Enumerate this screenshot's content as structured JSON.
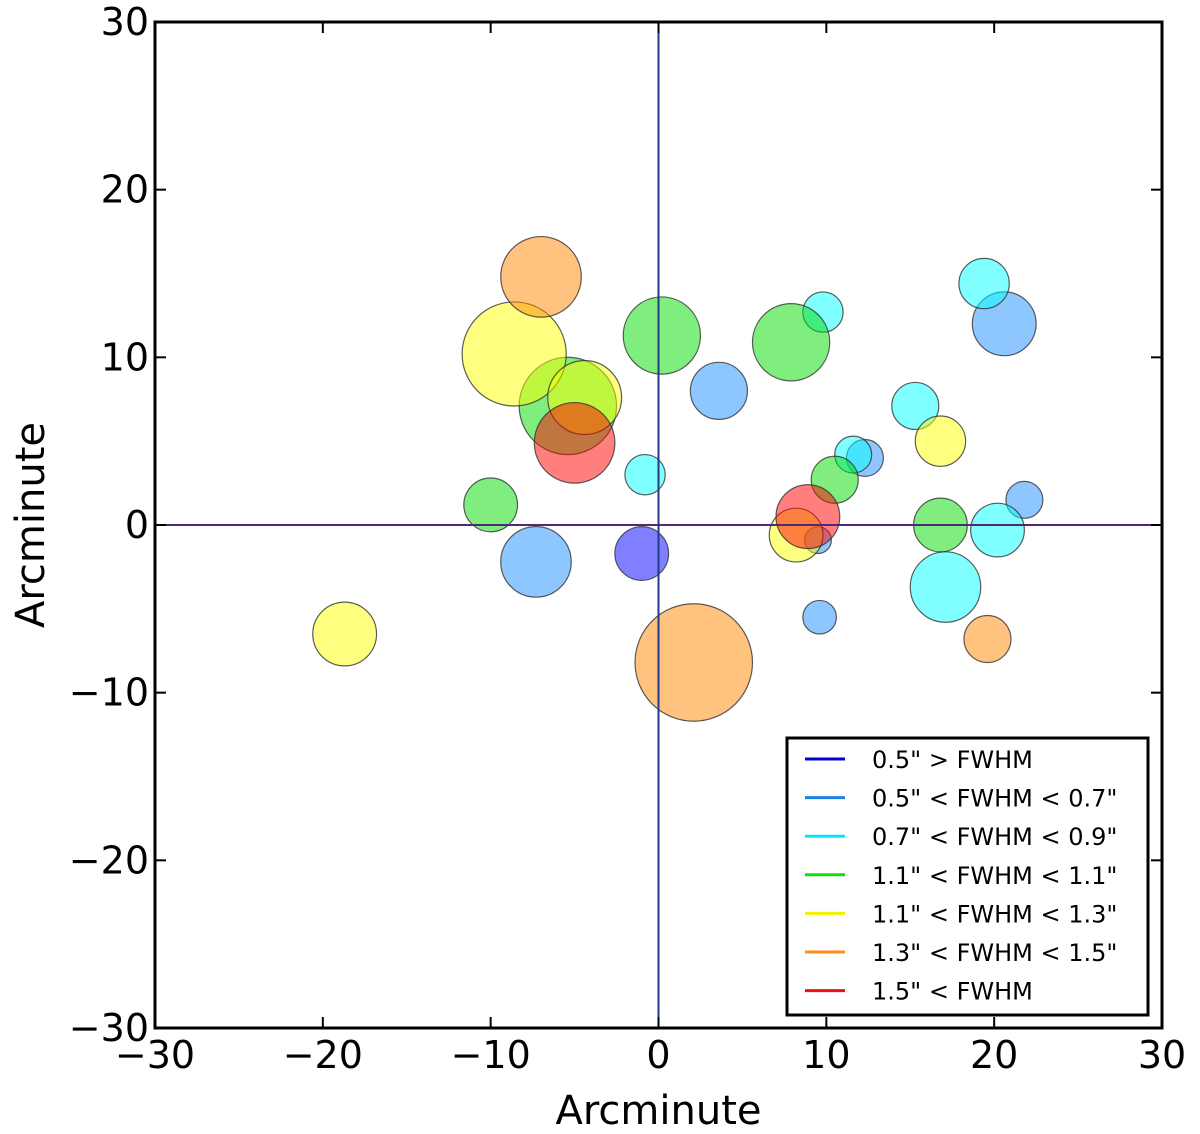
{
  "chart_data": {
    "type": "scatter",
    "title": "",
    "xlabel": "Arcminute",
    "ylabel": "Arcminute",
    "xlim": [
      -30,
      30
    ],
    "ylim": [
      -30,
      30
    ],
    "xticks": [
      -30,
      -20,
      -10,
      0,
      10,
      20,
      30
    ],
    "yticks": [
      -30,
      -20,
      -10,
      0,
      10,
      20,
      30
    ],
    "xtick_labels": [
      "−30",
      "−20",
      "−10",
      "0",
      "10",
      "20",
      "30"
    ],
    "ytick_labels": [
      "−30",
      "−20",
      "−10",
      "0",
      "10",
      "20",
      "30"
    ],
    "grid": false,
    "reference_lines": [
      {
        "orientation": "vertical",
        "value": 0,
        "color": "#1f3a8a"
      },
      {
        "orientation": "horizontal",
        "value": 0,
        "color": "#4b2a7a"
      }
    ],
    "legend_position": "bottom-right",
    "series": [
      {
        "name": "0.5\" > FWHM",
        "color": "#0000ff",
        "line_color": "#0000cc",
        "points": [
          {
            "x": -1.0,
            "y": -1.7,
            "r": 1.6
          }
        ]
      },
      {
        "name": "0.5\" < FWHM < 0.7\"",
        "color": "#1e90ff",
        "line_color": "#1e80e8",
        "points": [
          {
            "x": 3.6,
            "y": 8.0,
            "r": 1.7
          },
          {
            "x": 20.6,
            "y": 12.0,
            "r": 1.9
          },
          {
            "x": -7.3,
            "y": -2.2,
            "r": 2.1
          },
          {
            "x": 12.3,
            "y": 4.0,
            "r": 1.1
          },
          {
            "x": 21.8,
            "y": 1.5,
            "r": 1.1
          },
          {
            "x": 9.5,
            "y": -0.9,
            "r": 0.8
          },
          {
            "x": 9.6,
            "y": -5.5,
            "r": 1.0
          }
        ]
      },
      {
        "name": "0.7\" < FWHM < 0.9\"",
        "color": "#00ffff",
        "line_color": "#00e8ff",
        "points": [
          {
            "x": 19.4,
            "y": 14.4,
            "r": 1.5
          },
          {
            "x": 9.8,
            "y": 12.7,
            "r": 1.2
          },
          {
            "x": 15.3,
            "y": 7.1,
            "r": 1.4
          },
          {
            "x": 11.6,
            "y": 4.2,
            "r": 1.1
          },
          {
            "x": -0.8,
            "y": 3.0,
            "r": 1.2
          },
          {
            "x": 20.2,
            "y": -0.3,
            "r": 1.6
          },
          {
            "x": 17.1,
            "y": -3.7,
            "r": 2.1
          }
        ]
      },
      {
        "name": "1.1\" < FWHM < 1.1\"",
        "color": "#00dd00",
        "line_color": "#11dd11",
        "points": [
          {
            "x": 0.2,
            "y": 11.3,
            "r": 2.3
          },
          {
            "x": 7.9,
            "y": 10.9,
            "r": 2.3
          },
          {
            "x": -5.4,
            "y": 7.1,
            "r": 2.9
          },
          {
            "x": -10.0,
            "y": 1.2,
            "r": 1.6
          },
          {
            "x": 10.5,
            "y": 2.7,
            "r": 1.4
          },
          {
            "x": 16.8,
            "y": 0.0,
            "r": 1.6
          }
        ]
      },
      {
        "name": "1.1\" < FWHM < 1.3\"",
        "color": "#ffff00",
        "line_color": "#f2f200",
        "points": [
          {
            "x": -8.6,
            "y": 10.2,
            "r": 3.1
          },
          {
            "x": -4.4,
            "y": 7.6,
            "r": 2.2
          },
          {
            "x": 16.8,
            "y": 5.0,
            "r": 1.5
          },
          {
            "x": 8.2,
            "y": -0.6,
            "r": 1.6
          },
          {
            "x": -18.7,
            "y": -6.5,
            "r": 1.9
          }
        ]
      },
      {
        "name": "1.3\" < FWHM < 1.5\"",
        "color": "#ff8800",
        "line_color": "#ff8c1a",
        "points": [
          {
            "x": -7.0,
            "y": 14.8,
            "r": 2.4
          },
          {
            "x": 2.1,
            "y": -8.2,
            "r": 3.5
          },
          {
            "x": 19.6,
            "y": -6.8,
            "r": 1.4
          }
        ]
      },
      {
        "name": "1.5\" < FWHM",
        "color": "#ff0000",
        "line_color": "#ee1111",
        "points": [
          {
            "x": -5.0,
            "y": 4.9,
            "r": 2.4
          },
          {
            "x": 8.9,
            "y": 0.5,
            "r": 1.9
          }
        ]
      }
    ]
  }
}
